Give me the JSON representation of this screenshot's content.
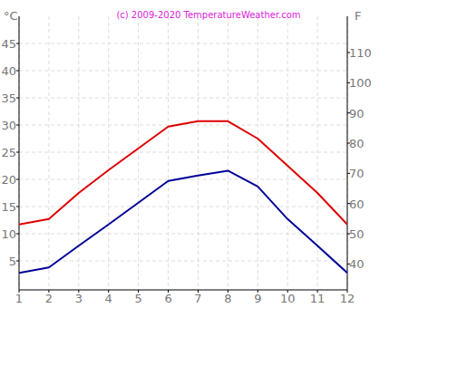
{
  "chart_data": {
    "type": "line",
    "title": "(c) 2009-2020 TemperatureWeather.com",
    "y_label": "°C",
    "y2_label": "F",
    "x": [
      1,
      2,
      3,
      4,
      5,
      6,
      7,
      8,
      9,
      10,
      11,
      12
    ],
    "xlim": [
      1,
      12
    ],
    "xticks": [
      1,
      2,
      3,
      4,
      5,
      6,
      7,
      8,
      9,
      10,
      11,
      12
    ],
    "ylim": [
      0,
      50
    ],
    "yticks": [
      5,
      10,
      15,
      20,
      25,
      30,
      35,
      40,
      45
    ],
    "y2lim": [
      32,
      122
    ],
    "y2ticks": [
      40,
      50,
      60,
      70,
      80,
      90,
      100,
      110
    ],
    "grid": true,
    "series": [
      {
        "color": "#dd0000",
        "values": [
          11.7,
          12.7,
          17.5,
          21.7,
          25.7,
          29.7,
          30.7,
          30.7,
          27.5,
          22.5,
          17.5,
          11.7
        ]
      },
      {
        "color": "#000099",
        "values": [
          2.8,
          3.8,
          7.8,
          11.7,
          15.7,
          19.7,
          20.7,
          21.6,
          18.7,
          12.7,
          7.8,
          2.8
        ]
      }
    ]
  }
}
